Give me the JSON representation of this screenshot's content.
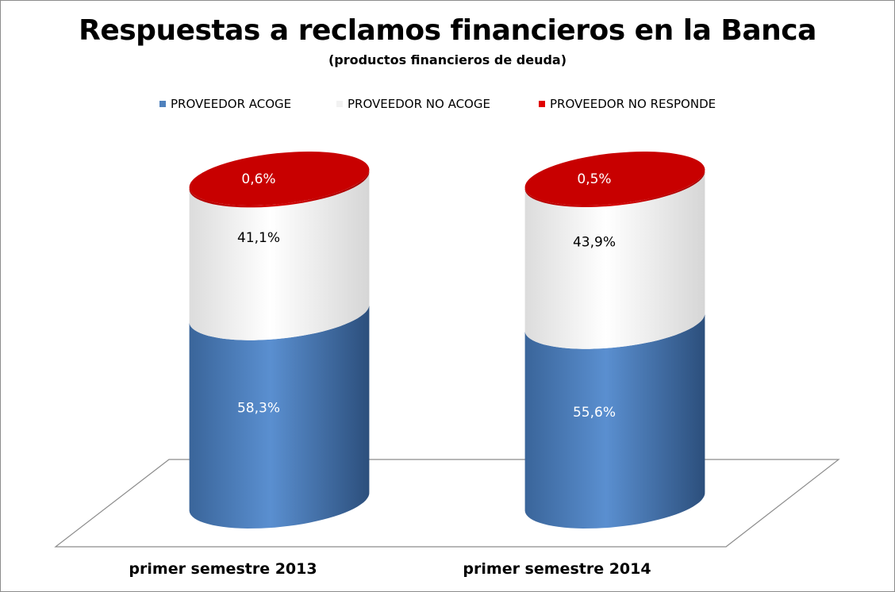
{
  "chart_data": {
    "type": "bar",
    "title": "Respuestas a reclamos financieros en la Banca",
    "subtitle": "(productos financieros de deuda)",
    "categories": [
      "primer semestre 2013",
      "primer semestre 2014"
    ],
    "series": [
      {
        "name": "PROVEEDOR ACOGE",
        "values": [
          58.3,
          55.6
        ],
        "labels": [
          "58,3%",
          "55,6%"
        ],
        "color": "#4f81bd",
        "label_color": "#ffffff"
      },
      {
        "name": "PROVEEDOR NO ACOGE",
        "values": [
          41.1,
          43.9
        ],
        "labels": [
          "41,1%",
          "43,9%"
        ],
        "color": "#f2f2f2",
        "label_color": "#000000"
      },
      {
        "name": "PROVEEDOR NO RESPONDE",
        "values": [
          0.6,
          0.5
        ],
        "labels": [
          "0,6%",
          "0,5%"
        ],
        "color": "#c00000",
        "label_color": "#ffffff"
      }
    ],
    "stacked": true,
    "ylim": [
      0,
      100
    ],
    "legend_position": "top",
    "grid": false,
    "shape": "cylinder"
  }
}
